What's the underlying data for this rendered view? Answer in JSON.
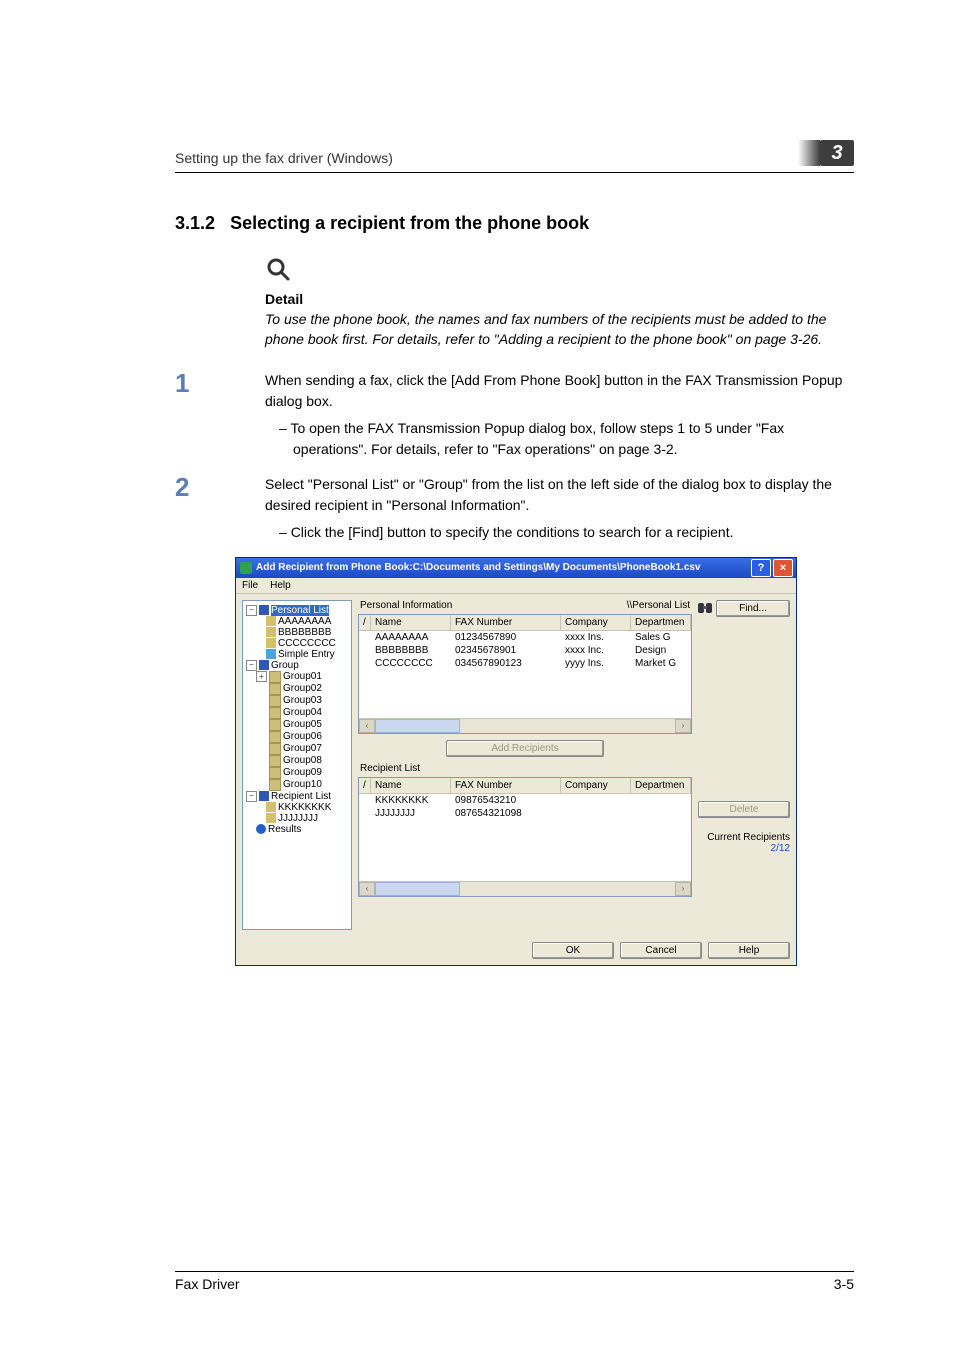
{
  "header": {
    "breadcrumb": "Setting up the fax driver (Windows)",
    "chapter": "3"
  },
  "section": {
    "number": "3.1.2",
    "title": "Selecting a recipient from the phone book"
  },
  "detail": {
    "heading": "Detail",
    "body": "To use the phone book, the names and fax numbers of the recipients must be added to the phone book first. For details, refer to \"Adding a recipient to the phone book\" on page 3-26."
  },
  "steps": [
    {
      "num": "1",
      "body": "When sending a fax, click the [Add From Phone Book] button in the FAX Transmission Popup dialog box.",
      "subs": [
        "To open the FAX Transmission Popup dialog box, follow steps 1 to 5 under \"Fax operations\". For details, refer to \"Fax operations\" on page 3-2."
      ]
    },
    {
      "num": "2",
      "body": "Select \"Personal List\" or \"Group\" from the list on the left side of the dialog box to display the desired recipient in \"Personal Information\".",
      "subs": [
        "Click the [Find] button to specify the conditions to search for a recipient."
      ]
    }
  ],
  "dialog": {
    "title": "Add Recipient from Phone Book:C:\\Documents and Settings\\My Documents\\PhoneBook1.csv",
    "help_btn": "?",
    "close_btn": "×",
    "menu": {
      "file": "File",
      "help": "Help"
    },
    "tree": {
      "personal_list": "Personal List",
      "entries": [
        "AAAAAAAA",
        "BBBBBBBB",
        "CCCCCCCC"
      ],
      "simple_entry": "Simple Entry",
      "group": "Group",
      "groups": [
        "Group01",
        "Group02",
        "Group03",
        "Group04",
        "Group05",
        "Group06",
        "Group07",
        "Group08",
        "Group09",
        "Group10"
      ],
      "recipient_list": "Recipient List",
      "rl_entries": [
        "KKKKKKKK",
        "JJJJJJJJ"
      ],
      "results": "Results"
    },
    "top_panel": {
      "label_left": "Personal Information",
      "label_right": "\\\\Personal List",
      "cols": {
        "name": "Name",
        "fax": "FAX Number",
        "company": "Company",
        "dept": "Departmen"
      },
      "rows": [
        {
          "name": "AAAAAAAA",
          "fax": "01234567890",
          "company": "xxxx Ins.",
          "dept": "Sales G"
        },
        {
          "name": "BBBBBBBB",
          "fax": "02345678901",
          "company": "xxxx Inc.",
          "dept": "Design"
        },
        {
          "name": "CCCCCCCC",
          "fax": "034567890123",
          "company": "yyyy Ins.",
          "dept": "Market G"
        }
      ],
      "add_btn": "Add Recipients"
    },
    "bottom_panel": {
      "label": "Recipient List",
      "cols": {
        "name": "Name",
        "fax": "FAX Number",
        "company": "Company",
        "dept": "Departmen"
      },
      "rows": [
        {
          "name": "KKKKKKKK",
          "fax": "09876543210",
          "company": "",
          "dept": ""
        },
        {
          "name": "JJJJJJJJ",
          "fax": "087654321098",
          "company": "",
          "dept": ""
        }
      ]
    },
    "right": {
      "find": "Find...",
      "delete": "Delete",
      "current": "Current Recipients",
      "count": "2/12"
    },
    "buttons": {
      "ok": "OK",
      "cancel": "Cancel",
      "help": "Help"
    },
    "col_widths": {
      "name": 80,
      "fax": 110,
      "company": 70,
      "dept": 60
    }
  },
  "footer": {
    "left": "Fax Driver",
    "right": "3-5"
  }
}
